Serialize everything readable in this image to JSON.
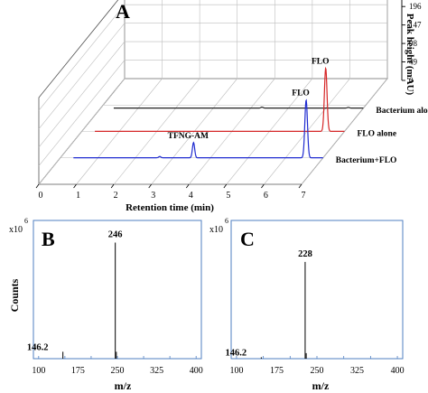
{
  "chart_data": [
    {
      "type": "line",
      "panel": "A",
      "style": "3d-waterfall",
      "xlabel": "Retention time (min)",
      "ylabel": "Peak height (mAU)",
      "xlim": [
        0,
        7
      ],
      "xticks": [
        0,
        1,
        2,
        3,
        4,
        5,
        6,
        7
      ],
      "ylim": [
        0,
        230
      ],
      "yticks": [
        0,
        49,
        98,
        147,
        196
      ],
      "grid": true,
      "series": [
        {
          "name": "Bacterium alone",
          "color": "#222222",
          "baseline": 0.3,
          "peaks": [
            {
              "x": 4.3,
              "y": 3,
              "width": 0.03
            },
            {
              "x": 6.6,
              "y": 2,
              "width": 0.03
            }
          ]
        },
        {
          "name": "FLO alone",
          "color": "#d62728",
          "baseline": 0.3,
          "peaks": [
            {
              "x": 6.5,
              "y": 195,
              "width": 0.035,
              "label": "FLO"
            }
          ]
        },
        {
          "name": "Bacterium+FLO",
          "color": "#1f2bd0",
          "baseline": 0.3,
          "peaks": [
            {
              "x": 2.65,
              "y": 4,
              "width": 0.03
            },
            {
              "x": 3.55,
              "y": 47,
              "width": 0.03,
              "label": "TFNG-AM"
            },
            {
              "x": 6.55,
              "y": 178,
              "width": 0.035,
              "label": "FLO"
            }
          ]
        }
      ]
    },
    {
      "type": "bar",
      "panel": "B",
      "title": "",
      "xlabel": "m/z",
      "ylabel": "Counts",
      "y_scale_label": "x10",
      "y_scale_exp": "6",
      "xlim": [
        90,
        410
      ],
      "xticks": [
        100,
        150,
        200,
        250,
        300,
        350,
        400
      ],
      "xticklabels": [
        "100",
        "175",
        "250",
        "325",
        "400"
      ],
      "xticklabel_positions": [
        100,
        175,
        250,
        325,
        400
      ],
      "ylim": [
        0,
        5
      ],
      "yticks": [
        0,
        1,
        2,
        3,
        4
      ],
      "peaks": [
        {
          "mz": 146.2,
          "intensity": 0.25,
          "label": "146.2"
        },
        {
          "mz": 246,
          "intensity": 4.2,
          "label": "246"
        },
        {
          "mz": 248,
          "intensity": 0.25,
          "label": ""
        }
      ]
    },
    {
      "type": "bar",
      "panel": "C",
      "title": "",
      "xlabel": "m/z",
      "ylabel": "",
      "y_scale_label": "x10",
      "y_scale_exp": "6",
      "xlim": [
        90,
        410
      ],
      "xticks": [
        100,
        150,
        200,
        250,
        300,
        350,
        400
      ],
      "xticklabels": [
        "100",
        "175",
        "250",
        "325",
        "400"
      ],
      "xticklabel_positions": [
        100,
        175,
        250,
        325,
        400
      ],
      "ylim": [
        0,
        5
      ],
      "yticks": [
        0,
        1,
        2,
        3,
        4
      ],
      "peaks": [
        {
          "mz": 146.2,
          "intensity": 0.05,
          "label": "146.2"
        },
        {
          "mz": 228,
          "intensity": 3.5,
          "label": "228"
        },
        {
          "mz": 230,
          "intensity": 0.2,
          "label": ""
        }
      ]
    }
  ]
}
